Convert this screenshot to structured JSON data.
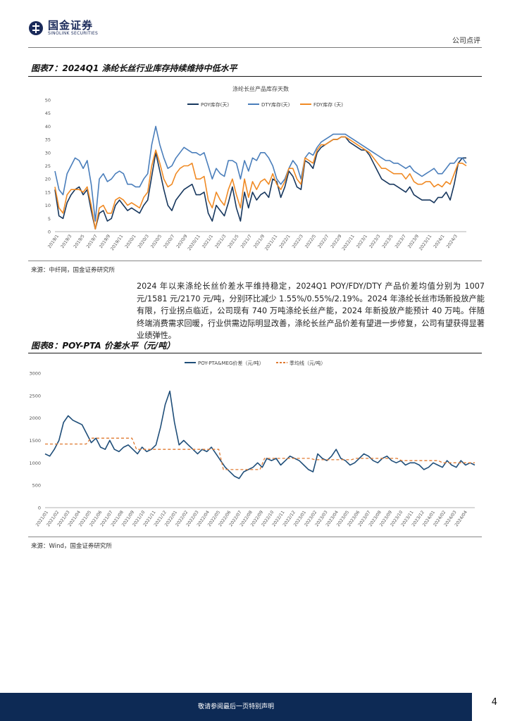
{
  "header": {
    "logo_cn": "国金证券",
    "logo_en": "SINOLINK SECURITIES",
    "doc_type": "公司点评"
  },
  "figure7": {
    "title": "图表7：2024Q1 涤纶长丝行业库存持续维持中低水平",
    "source": "来源：中纤网，国金证券研究所"
  },
  "paragraph": "2024 年以来涤纶长丝价差水平维持稳定，2024Q1 POY/FDY/DTY 产品价差均值分别为 1007 元/1581 元/2170 元/吨，分别环比减少 1.55%/0.55%/2.19%。2024 年涤纶长丝市场新投放产能有限，行业拐点临近，公司现有 740 万吨涤纶长丝产能，2024 年新投放产能预计 40 万吨。伴随终端消费需求回暖，行业供需边际明显改善，涤纶长丝产品价差有望进一步修复，公司有望获得显著业绩弹性。",
  "figure8": {
    "title": "图表8：POY-PTA 价差水平（元/吨）",
    "source": "来源：Wind，国金证券研究所"
  },
  "footer": {
    "disclaimer": "敬请参阅最后一页特别声明",
    "page": "4"
  },
  "colors": {
    "navy": "#0d2a55",
    "poy": "#17375e",
    "dty": "#4a7ebb",
    "fdy": "#f08a24",
    "spread": "#1f4e79",
    "quarter": "#e07a30"
  },
  "chart_data": [
    {
      "type": "line",
      "title": "涤纶长丝产品库存天数",
      "ylim": [
        0,
        50
      ],
      "yticks": [
        "0",
        "5",
        "10",
        "15",
        "20",
        "25",
        "30",
        "35",
        "40",
        "45",
        "50"
      ],
      "xticks": [
        "2019/1",
        "2019/3",
        "2019/5",
        "2019/7",
        "2019/9",
        "2019/11",
        "2020/1",
        "2020/3",
        "2020/5",
        "2020/7",
        "2020/9",
        "2020/11",
        "2021/1",
        "2021/3",
        "2021/5",
        "2021/7",
        "2021/9",
        "2021/11",
        "2022/1",
        "2022/3",
        "2022/5",
        "2022/7",
        "2022/9",
        "2022/11",
        "2023/1",
        "2023/3",
        "2023/5",
        "2023/7",
        "2023/9",
        "2023/11",
        "2024/1",
        "2024/3"
      ],
      "legend": "top-center",
      "series": [
        {
          "name": "POY库存(天)",
          "color": "#17375e",
          "values": [
            16,
            6,
            5,
            11,
            14,
            16,
            17,
            14,
            16,
            8,
            1,
            7,
            8,
            4,
            5,
            10,
            12,
            10,
            8,
            9,
            8,
            7,
            10,
            12,
            21,
            30,
            23,
            16,
            10,
            8,
            12,
            14,
            16,
            17,
            18,
            14,
            14,
            15,
            7,
            4,
            10,
            8,
            6,
            11,
            17,
            9,
            4,
            15,
            9,
            15,
            12,
            14,
            15,
            13,
            20,
            19,
            13,
            17,
            23,
            21,
            17,
            16,
            27,
            26,
            24,
            30,
            32,
            33,
            34,
            35,
            35,
            36,
            36,
            34,
            33,
            32,
            31,
            31,
            29,
            26,
            23,
            20,
            19,
            18,
            18,
            17,
            16,
            15,
            17,
            14,
            13,
            12,
            12,
            12,
            11,
            13,
            13,
            15,
            12,
            18,
            26,
            28,
            28
          ]
        },
        {
          "name": "DTY库存(天)",
          "color": "#4a7ebb",
          "values": [
            23,
            16,
            14,
            22,
            25,
            28,
            27,
            24,
            27,
            18,
            4,
            20,
            22,
            19,
            20,
            22,
            23,
            22,
            18,
            18,
            17,
            17,
            20,
            22,
            33,
            40,
            33,
            28,
            24,
            25,
            28,
            30,
            32,
            31,
            30,
            30,
            29,
            30,
            25,
            20,
            24,
            22,
            21,
            27,
            27,
            26,
            20,
            27,
            23,
            28,
            27,
            30,
            30,
            28,
            25,
            20,
            18,
            20,
            24,
            27,
            25,
            20,
            28,
            30,
            29,
            32,
            34,
            35,
            36,
            37,
            37,
            37,
            37,
            36,
            35,
            34,
            33,
            32,
            31,
            30,
            29,
            28,
            27,
            27,
            26,
            26,
            25,
            24,
            25,
            23,
            22,
            21,
            22,
            23,
            24,
            22,
            22,
            24,
            26,
            26,
            28,
            28,
            26
          ]
        },
        {
          "name": "FDY库存 (天)",
          "color": "#f08a24",
          "values": [
            17,
            9,
            7,
            14,
            16,
            16,
            16,
            15,
            17,
            10,
            1,
            9,
            10,
            7,
            7,
            12,
            13,
            12,
            10,
            11,
            10,
            9,
            13,
            15,
            25,
            31,
            26,
            20,
            17,
            18,
            22,
            24,
            25,
            25,
            26,
            20,
            20,
            21,
            12,
            9,
            15,
            12,
            10,
            16,
            20,
            14,
            9,
            20,
            13,
            19,
            16,
            19,
            20,
            18,
            22,
            18,
            16,
            19,
            24,
            24,
            20,
            18,
            28,
            27,
            26,
            31,
            33,
            33,
            34,
            35,
            35,
            36,
            36,
            35,
            34,
            33,
            32,
            31,
            30,
            28,
            26,
            24,
            24,
            23,
            22,
            22,
            22,
            20,
            22,
            19,
            18,
            18,
            19,
            19,
            17,
            18,
            17,
            19,
            18,
            22,
            26,
            26,
            25
          ]
        }
      ]
    },
    {
      "type": "line",
      "title": "POY-PTA价差",
      "ylim": [
        0,
        3000
      ],
      "yticks": [
        "0",
        "500",
        "1000",
        "1500",
        "2000",
        "2500",
        "3000"
      ],
      "xticks": [
        "2021/01",
        "2021/02",
        "2021/03",
        "2021/04",
        "2021/05",
        "2021/06",
        "2021/07",
        "2021/08",
        "2021/09",
        "2021/10",
        "2021/11",
        "2021/12",
        "2022/01",
        "2022/02",
        "2022/03",
        "2022/04",
        "2022/05",
        "2022/06",
        "2022/07",
        "2022/08",
        "2022/09",
        "2022/10",
        "2022/11",
        "2022/12",
        "2023/01",
        "2023/02",
        "2023/03",
        "2023/04",
        "2023/05",
        "2023/06",
        "2023/07",
        "2023/08",
        "2023/09",
        "2023/10",
        "2023/11",
        "2023/12",
        "2024/01",
        "2024/02",
        "2024/03",
        "2024/04"
      ],
      "legend": "top-center",
      "series": [
        {
          "name": "POY-PTA&MEG价差（元/吨）",
          "color": "#1f4e79",
          "values": [
            1200,
            1150,
            1300,
            1500,
            1900,
            2050,
            1950,
            1900,
            1850,
            1650,
            1450,
            1550,
            1350,
            1300,
            1500,
            1300,
            1250,
            1350,
            1400,
            1300,
            1200,
            1350,
            1250,
            1300,
            1400,
            1800,
            2300,
            2600,
            1900,
            1400,
            1500,
            1400,
            1300,
            1200,
            1300,
            1250,
            1350,
            1200,
            1050,
            900,
            800,
            700,
            650,
            800,
            850,
            900,
            1000,
            900,
            1100,
            1050,
            1100,
            950,
            1050,
            1150,
            1100,
            1050,
            950,
            850,
            800,
            1200,
            1100,
            1050,
            1150,
            1300,
            1100,
            1050,
            950,
            1000,
            1100,
            1200,
            1150,
            1050,
            1000,
            1100,
            1150,
            1050,
            1000,
            1050,
            950,
            1000,
            1000,
            950,
            850,
            900,
            1000,
            950,
            900,
            1050,
            950,
            900,
            1050,
            950,
            1000,
            950
          ]
        },
        {
          "name": "季均线（元/吨）",
          "color": "#e07a30",
          "dashed": true,
          "values": [
            1420,
            1420,
            1420,
            1420,
            1420,
            1420,
            1420,
            1420,
            1420,
            1420,
            1550,
            1550,
            1550,
            1550,
            1550,
            1550,
            1550,
            1550,
            1550,
            1550,
            1300,
            1300,
            1300,
            1300,
            1300,
            1300,
            1300,
            1300,
            1300,
            1300,
            1300,
            1300,
            1300,
            1300,
            1300,
            1300,
            1300,
            1300,
            1300,
            850,
            850,
            850,
            850,
            850,
            850,
            850,
            850,
            850,
            1100,
            1100,
            1100,
            1100,
            1100,
            1100,
            1100,
            1100,
            1100,
            1100,
            1100,
            1070,
            1070,
            1070,
            1070,
            1070,
            1070,
            1070,
            1070,
            1070,
            1100,
            1100,
            1100,
            1100,
            1100,
            1100,
            1100,
            1100,
            1100,
            1100,
            1050,
            1050,
            1050,
            1050,
            1050,
            1050,
            1050,
            1050,
            1050,
            1000,
            1000,
            1000,
            1000,
            1000,
            1000,
            1000,
            1000
          ]
        }
      ]
    }
  ]
}
